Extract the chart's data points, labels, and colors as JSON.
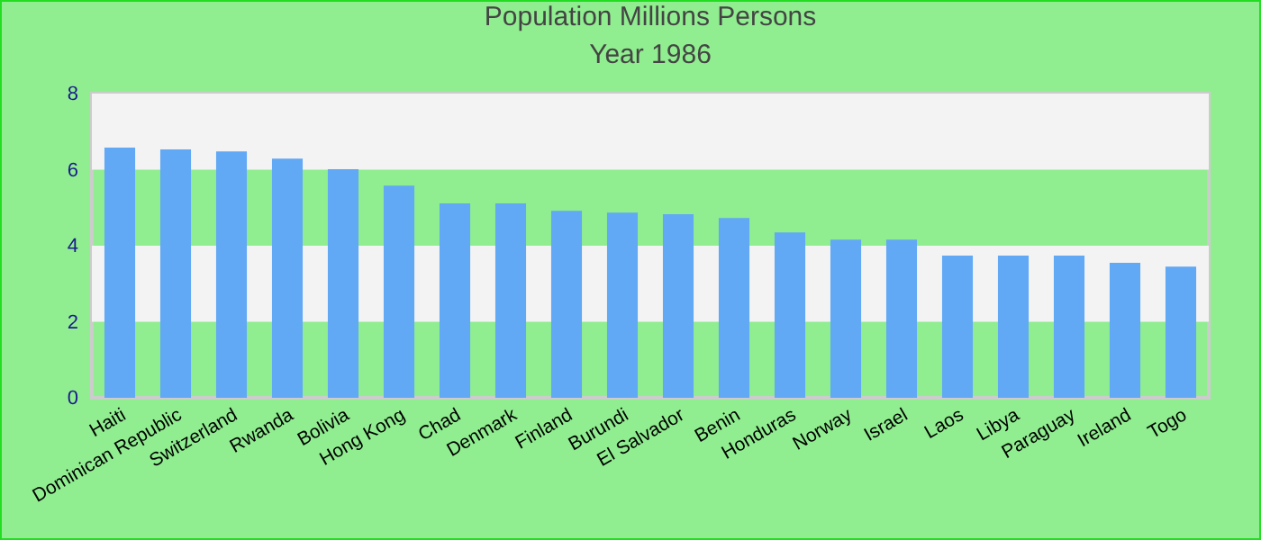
{
  "chart_data": {
    "type": "bar",
    "title": "Population Millions Persons",
    "subtitle": "Year 1986",
    "categories": [
      "Haiti",
      "Dominican Republic",
      "Switzerland",
      "Rwanda",
      "Bolivia",
      "Hong Kong",
      "Chad",
      "Denmark",
      "Finland",
      "Burundi",
      "El Salvador",
      "Benin",
      "Honduras",
      "Norway",
      "Israel",
      "Laos",
      "Libya",
      "Paraguay",
      "Ireland",
      "Togo"
    ],
    "values": [
      6.58,
      6.53,
      6.48,
      6.29,
      6.01,
      5.58,
      5.11,
      5.11,
      4.92,
      4.87,
      4.83,
      4.73,
      4.35,
      4.16,
      4.16,
      3.74,
      3.74,
      3.74,
      3.55,
      3.45
    ],
    "color": "#61a8f5",
    "ylim": [
      0,
      8
    ],
    "yticks": [
      0,
      2,
      4,
      6,
      8
    ],
    "bands": [
      {
        "axis": "y",
        "from": 2,
        "to": 4,
        "color": "#f3f3f3"
      },
      {
        "axis": "y",
        "from": 6,
        "to": 8,
        "color": "#f3f3f3"
      }
    ]
  }
}
